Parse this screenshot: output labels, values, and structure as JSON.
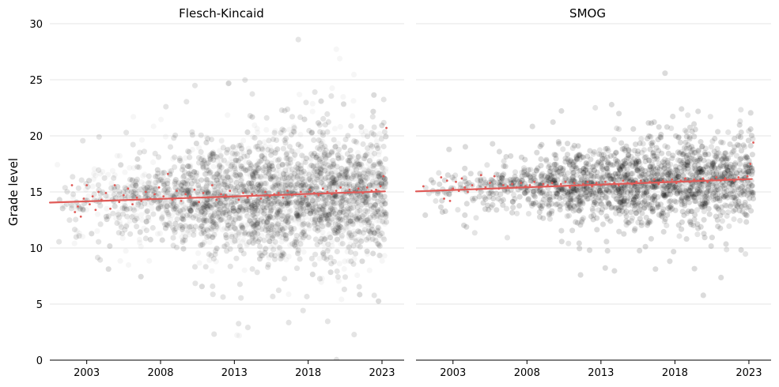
{
  "chart_data": [
    {
      "type": "scatter",
      "title": "Flesch-Kincaid",
      "ylabel": "Grade level",
      "xlabel": "",
      "xlim": [
        2000.5,
        2024.5
      ],
      "ylim": [
        0,
        30
      ],
      "xticks": [
        "2003",
        "2008",
        "2013",
        "2018",
        "2023"
      ],
      "yticks": [
        "0",
        "5",
        "10",
        "15",
        "20",
        "25",
        "30"
      ],
      "grid": "horizontal",
      "cloud": {
        "color": "#000000",
        "center": [
          [
            2003,
            14.2
          ],
          [
            2008,
            14.3
          ],
          [
            2013,
            14.3
          ],
          [
            2018,
            14.6
          ],
          [
            2022,
            14.6
          ]
        ],
        "spread": [
          [
            2003,
            2.0
          ],
          [
            2008,
            2.3
          ],
          [
            2013,
            3.0
          ],
          [
            2018,
            3.3
          ],
          [
            2022,
            3.0
          ]
        ],
        "density": [
          [
            2001,
            0.05
          ],
          [
            2005,
            0.25
          ],
          [
            2010,
            0.6
          ],
          [
            2015,
            1.0
          ],
          [
            2020,
            1.0
          ],
          [
            2023,
            0.9
          ]
        ]
      },
      "trend": {
        "color": "#e05a57",
        "x": [
          2000.5,
          2023.2
        ],
        "y": [
          14.05,
          15.05
        ]
      },
      "series": [
        {
          "color": "#e05a57",
          "x": [
            2002.0,
            2002.2,
            2002.4,
            2002.6,
            2002.8,
            2003.0,
            2003.2,
            2003.4,
            2003.6,
            2003.8,
            2004.0,
            2004.3,
            2004.6,
            2004.9,
            2005.2,
            2005.5,
            2005.8,
            2006.1,
            2006.4,
            2006.7,
            2007.0,
            2007.3,
            2007.6,
            2007.9,
            2008.2,
            2008.5,
            2008.8,
            2009.1,
            2009.4,
            2009.7,
            2010.0,
            2010.3,
            2010.6,
            2010.9,
            2011.2,
            2011.5,
            2011.8,
            2012.1,
            2012.4,
            2012.7,
            2013.0,
            2013.3,
            2013.6,
            2013.9,
            2014.2,
            2014.5,
            2014.8,
            2015.1,
            2015.4,
            2015.7,
            2016.0,
            2016.3,
            2016.6,
            2016.9,
            2017.2,
            2017.5,
            2017.8,
            2018.1,
            2018.4,
            2018.7,
            2019.0,
            2019.3,
            2019.6,
            2019.9,
            2020.2,
            2020.5,
            2020.8,
            2021.1,
            2021.4,
            2021.7,
            2022.0,
            2022.3,
            2022.6,
            2022.9,
            2023.1,
            2023.3
          ],
          "y": [
            15.6,
            13.2,
            13.7,
            12.8,
            14.4,
            15.6,
            13.9,
            14.6,
            13.4,
            15.0,
            14.3,
            14.9,
            13.5,
            15.6,
            14.1,
            14.7,
            15.3,
            13.9,
            14.5,
            14.2,
            15.0,
            14.4,
            14.8,
            15.4,
            14.6,
            16.6,
            14.3,
            15.1,
            14.2,
            14.8,
            14.6,
            15.2,
            14.1,
            14.9,
            14.5,
            15.6,
            14.3,
            14.8,
            14.7,
            15.1,
            14.6,
            14.3,
            14.9,
            14.5,
            14.8,
            14.7,
            14.4,
            15.0,
            14.6,
            14.8,
            14.9,
            14.5,
            15.1,
            14.7,
            14.8,
            15.0,
            14.6,
            15.2,
            14.9,
            14.7,
            15.3,
            15.0,
            14.8,
            15.1,
            15.4,
            14.9,
            15.2,
            15.0,
            15.3,
            14.9,
            15.4,
            15.1,
            15.2,
            15.5,
            16.4,
            20.7
          ]
        }
      ]
    },
    {
      "type": "scatter",
      "title": "SMOG",
      "ylabel": "",
      "xlabel": "",
      "xlim": [
        2000.5,
        2024.5
      ],
      "ylim": [
        0,
        30
      ],
      "xticks": [
        "2003",
        "2008",
        "2013",
        "2018",
        "2023"
      ],
      "yticks": [
        "0",
        "5",
        "10",
        "15",
        "20",
        "25",
        "30"
      ],
      "grid": "horizontal",
      "cloud": {
        "color": "#000000",
        "center": [
          [
            2003,
            15.3
          ],
          [
            2008,
            15.4
          ],
          [
            2013,
            15.6
          ],
          [
            2018,
            15.9
          ],
          [
            2022,
            16.0
          ]
        ],
        "spread": [
          [
            2003,
            1.3
          ],
          [
            2008,
            1.5
          ],
          [
            2013,
            2.0
          ],
          [
            2018,
            2.3
          ],
          [
            2022,
            2.1
          ]
        ],
        "density": [
          [
            2001,
            0.05
          ],
          [
            2005,
            0.25
          ],
          [
            2010,
            0.6
          ],
          [
            2015,
            1.0
          ],
          [
            2020,
            1.0
          ],
          [
            2023,
            0.9
          ]
        ]
      },
      "trend": {
        "color": "#e05a57",
        "x": [
          2000.5,
          2023.2
        ],
        "y": [
          15.05,
          16.15
        ]
      },
      "series": [
        {
          "color": "#e05a57",
          "x": [
            2001.0,
            2002.2,
            2002.4,
            2002.6,
            2002.8,
            2003.0,
            2003.2,
            2003.4,
            2003.6,
            2003.8,
            2004.0,
            2004.3,
            2004.6,
            2004.9,
            2005.2,
            2005.5,
            2005.8,
            2006.1,
            2006.4,
            2006.7,
            2007.0,
            2007.3,
            2007.6,
            2007.9,
            2008.2,
            2008.5,
            2008.8,
            2009.1,
            2009.4,
            2009.7,
            2010.0,
            2010.3,
            2010.6,
            2010.9,
            2011.2,
            2011.5,
            2011.8,
            2012.1,
            2012.4,
            2012.7,
            2013.0,
            2013.3,
            2013.6,
            2013.9,
            2014.2,
            2014.5,
            2014.8,
            2015.1,
            2015.4,
            2015.7,
            2016.0,
            2016.3,
            2016.6,
            2016.9,
            2017.2,
            2017.5,
            2017.8,
            2018.1,
            2018.4,
            2018.7,
            2019.0,
            2019.3,
            2019.6,
            2019.9,
            2020.2,
            2020.5,
            2020.8,
            2021.1,
            2021.4,
            2021.7,
            2022.0,
            2022.3,
            2022.6,
            2022.9,
            2023.1,
            2023.3
          ],
          "y": [
            15.5,
            16.3,
            14.4,
            16.0,
            14.2,
            15.3,
            15.9,
            15.1,
            16.2,
            15.4,
            15.0,
            15.6,
            15.2,
            16.5,
            15.4,
            15.8,
            16.4,
            15.3,
            15.6,
            15.5,
            15.7,
            15.4,
            15.8,
            15.5,
            15.6,
            15.9,
            15.4,
            15.7,
            15.6,
            15.8,
            15.5,
            15.7,
            15.9,
            15.4,
            15.8,
            15.6,
            15.7,
            15.9,
            15.5,
            15.8,
            15.6,
            15.9,
            15.7,
            15.8,
            15.6,
            16.0,
            15.8,
            15.7,
            15.9,
            16.0,
            15.8,
            15.9,
            16.1,
            15.7,
            16.0,
            15.9,
            16.1,
            15.8,
            16.0,
            16.2,
            15.9,
            16.1,
            16.0,
            16.2,
            15.9,
            16.1,
            16.3,
            16.0,
            16.2,
            16.1,
            16.0,
            16.3,
            16.1,
            16.4,
            17.5,
            19.4
          ]
        }
      ]
    }
  ]
}
